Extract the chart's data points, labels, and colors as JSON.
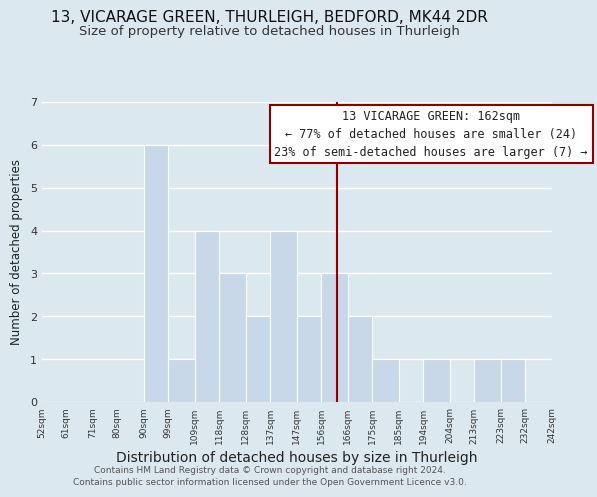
{
  "title1": "13, VICARAGE GREEN, THURLEIGH, BEDFORD, MK44 2DR",
  "title2": "Size of property relative to detached houses in Thurleigh",
  "xlabel": "Distribution of detached houses by size in Thurleigh",
  "ylabel": "Number of detached properties",
  "bar_values": [
    0,
    0,
    0,
    0,
    6,
    1,
    4,
    3,
    2,
    4,
    2,
    3,
    2,
    1,
    0,
    1,
    0,
    1,
    1,
    0
  ],
  "bar_left_edges": [
    52,
    61,
    71,
    80,
    90,
    99,
    109,
    118,
    128,
    137,
    147,
    156,
    166,
    175,
    185,
    194,
    204,
    213,
    223,
    232
  ],
  "bar_widths": [
    9,
    10,
    9,
    10,
    9,
    10,
    9,
    10,
    9,
    10,
    9,
    10,
    9,
    10,
    9,
    10,
    9,
    10,
    9,
    10
  ],
  "xtick_positions": [
    52,
    61,
    71,
    80,
    90,
    99,
    109,
    118,
    128,
    137,
    147,
    156,
    166,
    175,
    185,
    194,
    204,
    213,
    223,
    232,
    242
  ],
  "xtick_labels": [
    "52sqm",
    "61sqm",
    "71sqm",
    "80sqm",
    "90sqm",
    "99sqm",
    "109sqm",
    "118sqm",
    "128sqm",
    "137sqm",
    "147sqm",
    "156sqm",
    "166sqm",
    "175sqm",
    "185sqm",
    "194sqm",
    "204sqm",
    "213sqm",
    "223sqm",
    "232sqm",
    "242sqm"
  ],
  "bar_color": "#c8d8e8",
  "bar_edgecolor": "white",
  "ref_line_x": 162,
  "ref_line_color": "#8b0000",
  "ylim": [
    0,
    7
  ],
  "yticks": [
    0,
    1,
    2,
    3,
    4,
    5,
    6,
    7
  ],
  "grid_color": "#ffffff",
  "bg_color": "#dce8f0",
  "plot_bg_color": "#dce8f0",
  "annotation_text": "13 VICARAGE GREEN: 162sqm\n← 77% of detached houses are smaller (24)\n23% of semi-detached houses are larger (7) →",
  "annotation_box_facecolor": "#ffffff",
  "annotation_box_edgecolor": "#8b0000",
  "footer1": "Contains HM Land Registry data © Crown copyright and database right 2024.",
  "footer2": "Contains public sector information licensed under the Open Government Licence v3.0.",
  "title1_fontsize": 11,
  "title2_fontsize": 9.5,
  "xlabel_fontsize": 10,
  "ylabel_fontsize": 8.5,
  "annotation_fontsize": 8.5,
  "footer_fontsize": 6.5,
  "xlim_left": 52,
  "xlim_right": 242
}
